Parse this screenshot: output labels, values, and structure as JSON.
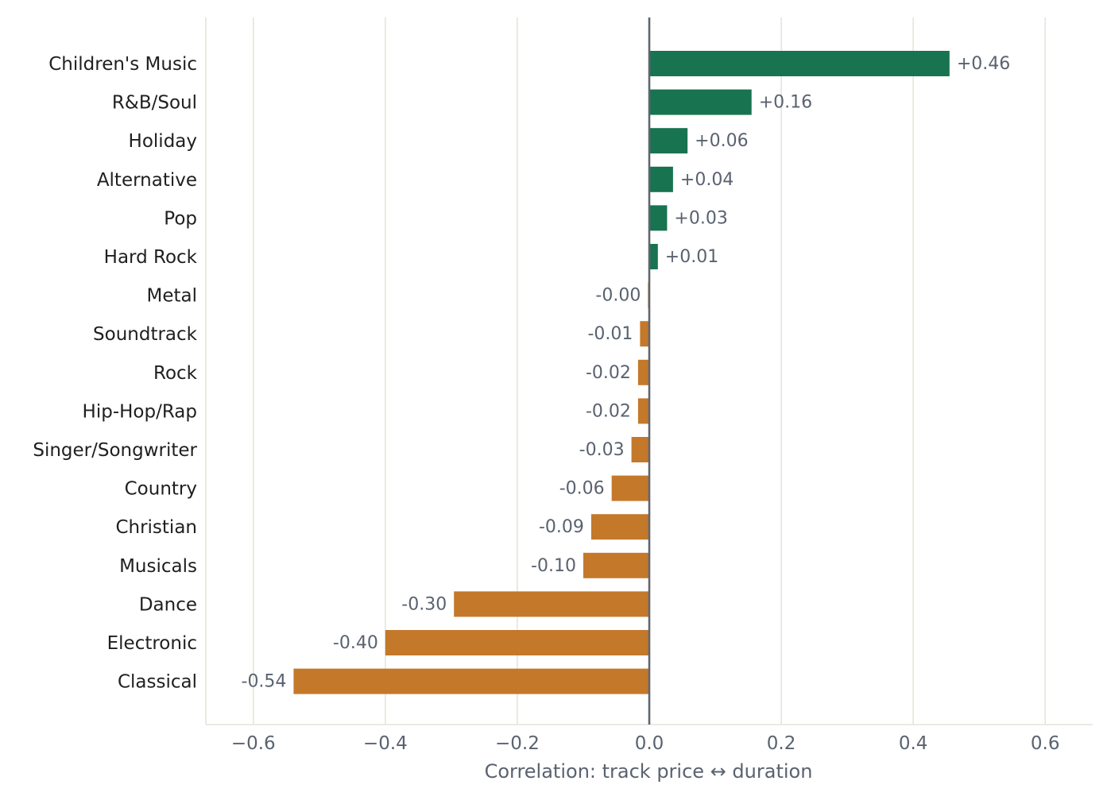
{
  "chart_data": {
    "type": "bar",
    "orientation": "horizontal",
    "categories": [
      "Children's Music",
      "R&B/Soul",
      "Holiday",
      "Alternative",
      "Pop",
      "Hard Rock",
      "Metal",
      "Soundtrack",
      "Rock",
      "Hip-Hop/Rap",
      "Singer/Songwriter",
      "Country",
      "Christian",
      "Musicals",
      "Dance",
      "Electronic",
      "Classical"
    ],
    "values": [
      0.455,
      0.155,
      0.058,
      0.036,
      0.027,
      0.013,
      -0.002,
      -0.014,
      -0.017,
      -0.017,
      -0.027,
      -0.057,
      -0.088,
      -0.1,
      -0.296,
      -0.4,
      -0.539
    ],
    "value_labels": [
      "+0.46",
      "+0.16",
      "+0.06",
      "+0.04",
      "+0.03",
      "+0.01",
      "-0.00",
      "-0.01",
      "-0.02",
      "-0.02",
      "-0.03",
      "-0.06",
      "-0.09",
      "-0.10",
      "-0.30",
      "-0.40",
      "-0.54"
    ],
    "xlabel": "Correlation: track price ↔ duration",
    "xlim": [
      -0.672,
      0.672
    ],
    "xticks": [
      -0.6,
      -0.4,
      -0.2,
      0.0,
      0.2,
      0.4,
      0.6
    ],
    "xtick_labels": [
      "−0.6",
      "−0.4",
      "−0.2",
      "0.0",
      "0.2",
      "0.4",
      "0.6"
    ],
    "grid": "vertical",
    "colors": {
      "positive": "#177350",
      "negative": "#c4782a",
      "zero_line": "#5f6670",
      "grid": "#e6e4da"
    }
  }
}
